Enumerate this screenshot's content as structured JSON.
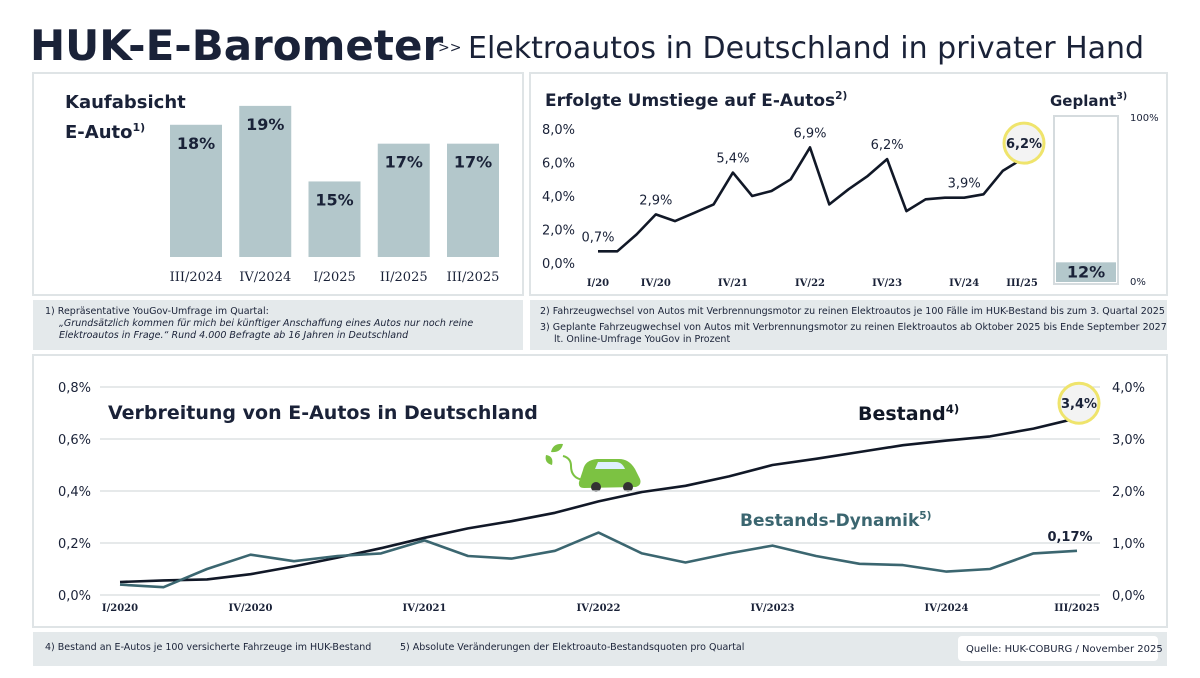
{
  "header": {
    "title": "HUK-E-Barometer",
    "separator": ">>",
    "subtitle": "Elektroautos in Deutschland in privater Hand"
  },
  "chart_data": [
    {
      "type": "bar",
      "title": "Kaufabsicht E-Auto",
      "title_note": "1)",
      "categories": [
        "III/2024",
        "IV/2024",
        "I/2025",
        "II/2025",
        "III/2025"
      ],
      "values": [
        18,
        19,
        15,
        17,
        17
      ],
      "value_labels": [
        "18%",
        "19%",
        "15%",
        "17%",
        "17%"
      ],
      "color": "#b3c7cb",
      "ylim": [
        11,
        20
      ]
    },
    {
      "type": "line",
      "title": "Erfolgte Umstiege auf E-Autos",
      "title_note": "2)",
      "categories": [
        "I/20",
        null,
        null,
        "IV/20",
        null,
        null,
        null,
        "IV/21",
        null,
        null,
        null,
        "IV/22",
        null,
        null,
        null,
        "IV/23",
        null,
        null,
        null,
        "IV/24",
        null,
        null,
        "III/25"
      ],
      "values": [
        0.7,
        0.7,
        1.7,
        2.9,
        2.5,
        3.0,
        3.5,
        5.4,
        4.0,
        4.3,
        5.0,
        6.9,
        3.5,
        4.4,
        5.2,
        6.2,
        3.1,
        3.8,
        3.9,
        3.9,
        4.1,
        5.5,
        6.2
      ],
      "value_labels": [
        "0,7%",
        null,
        null,
        "2,9%",
        null,
        null,
        null,
        "5,4%",
        null,
        null,
        null,
        "6,9%",
        null,
        null,
        null,
        "6,2%",
        null,
        null,
        null,
        "3,9%",
        null,
        null,
        "6,2%"
      ],
      "color": "#111827",
      "highlight_last": true,
      "ylim": [
        0,
        8
      ],
      "yticks": [
        {
          "value": 0,
          "label": "0,0%"
        },
        {
          "value": 2,
          "label": "2,0%"
        },
        {
          "value": 4,
          "label": "4,0%"
        },
        {
          "value": 6,
          "label": "6,0%"
        },
        {
          "value": 8,
          "label": "8,0%"
        }
      ]
    },
    {
      "type": "bar",
      "title": "Geplant",
      "title_note": "3)",
      "values": [
        12
      ],
      "value_labels": [
        "12%"
      ],
      "color": "#b3c7cb",
      "ylim": [
        0,
        100
      ],
      "yticks": [
        {
          "value": 0,
          "label": "0%"
        },
        {
          "value": 100,
          "label": "100%"
        }
      ]
    },
    {
      "type": "line",
      "title": "Verbreitung von E-Autos in Deutschland",
      "categories": [
        "I/2020",
        null,
        null,
        "IV/2020",
        null,
        null,
        null,
        "IV/2021",
        null,
        null,
        null,
        "IV/2022",
        null,
        null,
        null,
        "IV/2023",
        null,
        null,
        null,
        "IV/2024",
        null,
        null,
        "III/2025"
      ],
      "series": [
        {
          "name": "Bestand",
          "note": "4)",
          "color": "#111827",
          "axis": "y2",
          "highlight_last": true,
          "values": [
            0.25,
            0.28,
            0.3,
            0.4,
            0.55,
            0.72,
            0.9,
            1.1,
            1.28,
            1.42,
            1.58,
            1.8,
            1.98,
            2.1,
            2.28,
            2.5,
            2.62,
            2.75,
            2.88,
            2.97,
            3.05,
            3.2,
            3.4
          ],
          "value_labels": [
            null,
            null,
            null,
            null,
            null,
            null,
            null,
            null,
            null,
            null,
            null,
            null,
            null,
            null,
            null,
            null,
            null,
            null,
            null,
            null,
            null,
            null,
            "3,4%"
          ]
        },
        {
          "name": "Bestands-Dynamik",
          "note": "5)",
          "color": "#3b6670",
          "values": [
            0.04,
            0.03,
            0.1,
            0.155,
            0.13,
            0.15,
            0.16,
            0.21,
            0.15,
            0.14,
            0.17,
            0.24,
            0.16,
            0.125,
            0.16,
            0.19,
            0.15,
            0.12,
            0.115,
            0.09,
            0.1,
            0.16,
            0.17
          ],
          "value_labels": [
            null,
            null,
            null,
            null,
            null,
            null,
            null,
            null,
            null,
            null,
            null,
            null,
            null,
            null,
            null,
            null,
            null,
            null,
            null,
            null,
            null,
            null,
            "0,17%"
          ]
        }
      ],
      "ylim": [
        0,
        0.8
      ],
      "yticks": [
        {
          "value": 0,
          "label": "0,0%"
        },
        {
          "value": 0.2,
          "label": "0,2%"
        },
        {
          "value": 0.4,
          "label": "0,4%"
        },
        {
          "value": 0.6,
          "label": "0,6%"
        },
        {
          "value": 0.8,
          "label": "0,8%"
        }
      ],
      "y2lim": [
        0,
        4
      ],
      "y2ticks": [
        {
          "value": 0,
          "label": "0,0%"
        },
        {
          "value": 1,
          "label": "1,0%"
        },
        {
          "value": 2,
          "label": "2,0%"
        },
        {
          "value": 3,
          "label": "3,0%"
        },
        {
          "value": 4,
          "label": "4,0%"
        }
      ],
      "grid": true
    }
  ],
  "footnotes": [
    [
      "1)  Repräsentative YouGov-Umfrage im Quartal:",
      "„Grundsätzlich kommen für mich bei künftiger Anschaffung eines Autos nur noch reine",
      "Elektroautos in Frage.“ Rund 4.000 Befragte ab 16 Jahren in Deutschland"
    ],
    [
      "2)  Fahrzeugwechsel von Autos mit Verbrennungsmotor zu reinen Elektroautos je 100 Fälle im HUK-Bestand bis zum 3. Quartal 2025"
    ],
    [
      "3)  Geplante Fahrzeugwechsel von Autos mit Verbrennungsmotor zu reinen Elektroautos ab Oktober 2025 bis Ende September 2027",
      "lt. Online-Umfrage YouGov in Prozent"
    ],
    [
      "4)  Bestand an E-Autos je 100 versicherte Fahrzeuge im HUK-Bestand"
    ],
    [
      "5)  Absolute Veränderungen der Elektroauto-Bestandsquoten pro Quartal"
    ]
  ],
  "source": "Quelle: HUK-COBURG / November  2025"
}
